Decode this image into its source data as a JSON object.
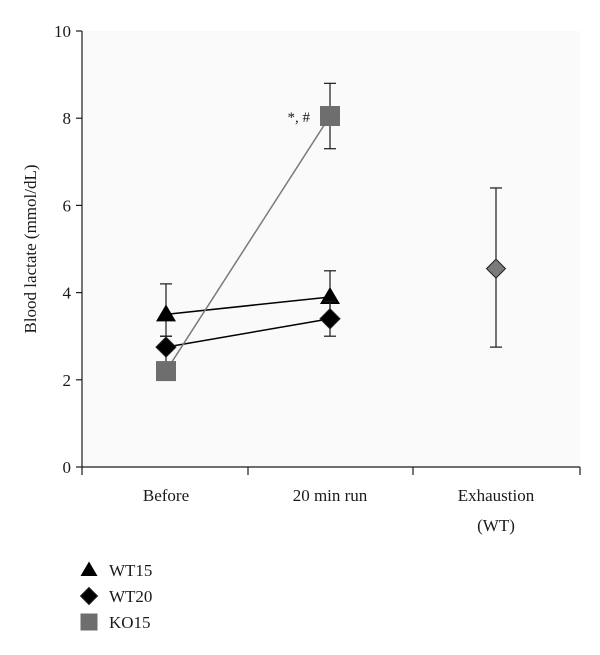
{
  "chart_data": {
    "type": "line",
    "title": "",
    "xlabel": "",
    "ylabel": "Blood lactate (mmol/dL)",
    "ylim": [
      0,
      10
    ],
    "yticks": [
      "0",
      "2",
      "4",
      "6",
      "8",
      "10"
    ],
    "categories": [
      "Before",
      "20 min  run",
      "Exhaustion"
    ],
    "category_sublabels": [
      "",
      "",
      "(WT)"
    ],
    "series": [
      {
        "name": "WT15",
        "marker": "triangle",
        "color": "#000000",
        "line_color": "#000000",
        "points": [
          {
            "category": 0,
            "y": 3.5,
            "err_low": 3.0,
            "err_high": 4.2
          },
          {
            "category": 1,
            "y": 3.9,
            "err_low": 3.4,
            "err_high": 4.5
          }
        ]
      },
      {
        "name": "WT20",
        "marker": "diamond",
        "color": "#000000",
        "line_color": "#000000",
        "points": [
          {
            "category": 0,
            "y": 2.75,
            "err_low": 2.4,
            "err_high": 3.0
          },
          {
            "category": 1,
            "y": 3.4,
            "err_low": 3.0,
            "err_high": 3.8
          }
        ]
      },
      {
        "name": "KO15",
        "marker": "square",
        "color": "#6e6e6e",
        "line_color": "#7a7a7a",
        "points": [
          {
            "category": 0,
            "y": 2.2,
            "err_low": 2.0,
            "err_high": 2.4
          },
          {
            "category": 1,
            "y": 8.05,
            "err_low": 7.3,
            "err_high": 8.8
          }
        ]
      },
      {
        "name": "",
        "marker": "diamond",
        "color": "#7a7a7a",
        "line_color": "none",
        "points": [
          {
            "category": 2,
            "y": 4.55,
            "err_low": 2.75,
            "err_high": 6.4
          }
        ]
      }
    ],
    "annotations": [
      {
        "text": "*, #",
        "category": 1,
        "y": 8.05
      }
    ],
    "legend": {
      "placement": "bottom-left",
      "entries": [
        {
          "label": "WT15",
          "marker": "triangle",
          "color": "#000000"
        },
        {
          "label": "WT20",
          "marker": "diamond",
          "color": "#000000"
        },
        {
          "label": "KO15",
          "marker": "square",
          "color": "#6e6e6e"
        }
      ]
    },
    "grid": false
  }
}
